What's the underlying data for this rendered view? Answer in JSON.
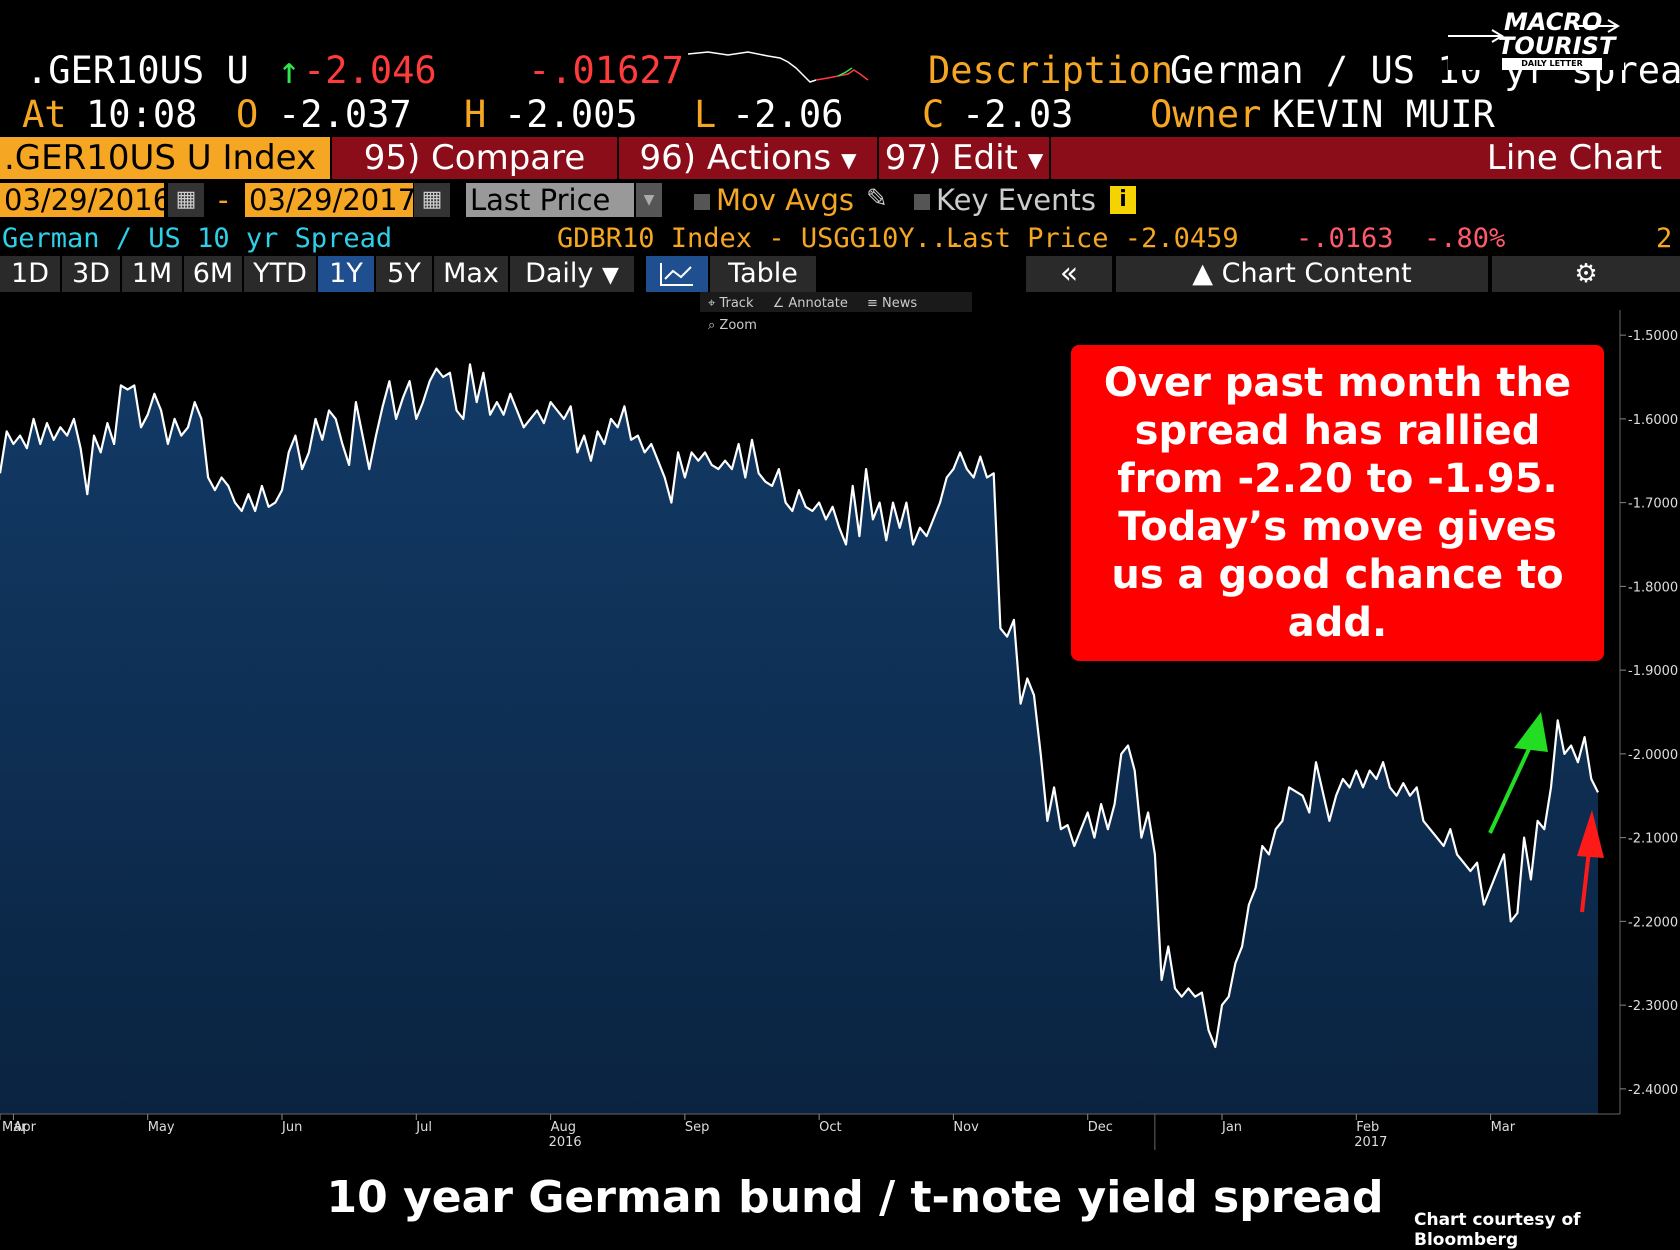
{
  "header": {
    "ticker": ".GER10US U",
    "last_arrow": "↑",
    "last": "-2.046",
    "change": "-.01627",
    "desc_label": "Description",
    "desc_value": "German / US 10 yr sprea",
    "at_label": "At",
    "time": "10:08",
    "open_label": "O",
    "open": "-2.037",
    "high_label": "H",
    "high": "-2.005",
    "low_label": "L",
    "low": "-2.06",
    "close_label": "C",
    "close": "-2.03",
    "owner_label": "Owner",
    "owner": "KEVIN MUIR"
  },
  "logo": {
    "line1": "MACRO",
    "line2": "TOURIST",
    "line3": "DAILY LETTER"
  },
  "toolbar": {
    "security": ".GER10US U Index",
    "compare": "95) Compare",
    "actions": "96) Actions",
    "edit": "97) Edit",
    "chart_type": "Line Chart"
  },
  "settings": {
    "start_date": "03/29/2016",
    "dash": "-",
    "end_date": "03/29/2017",
    "field": "Last Price",
    "mov_avgs": "Mov Avgs",
    "key_events": "Key Events"
  },
  "legend": {
    "name": "German / US 10 yr Spread",
    "series": "GDBR10 Index - USGG10Y...",
    "last_price": "Last Price -2.0459",
    "change": "-.0163",
    "pct": "-.80%",
    "count": "2"
  },
  "periods": [
    "1D",
    "3D",
    "1M",
    "6M",
    "YTD",
    "1Y",
    "5Y",
    "Max"
  ],
  "active_period": "1Y",
  "frequency": "Daily",
  "table_label": "Table",
  "chart_content_label": "Chart Content",
  "chart_tools": [
    "Track",
    "Annotate",
    "News",
    "Zoom"
  ],
  "callout": "Over past month the spread has rallied from -2.20 to -1.95.  Today’s move gives us a good chance to add.",
  "caption": "10 year German bund / t-note yield spread",
  "credit": "Chart courtesy of Bloomberg",
  "colors": {
    "accent_orange": "#f5a623",
    "bar_red": "#8b0d1a",
    "area_fill": "#0d2a4d",
    "callout_red": "#ff0000"
  },
  "chart_data": {
    "type": "area",
    "ylim": [
      -2.43,
      -1.47
    ],
    "yticks": [
      -1.5,
      -1.6,
      -1.7,
      -1.8,
      -1.9,
      -2.0,
      -2.1,
      -2.2,
      -2.3,
      -2.4
    ],
    "ytick_labels": [
      "-1.5000",
      "-1.6000",
      "-1.7000",
      "-1.8000",
      "-1.9000",
      "-2.0000",
      "-2.1000",
      "-2.2000",
      "-2.3000",
      "-2.4000"
    ],
    "x_months": [
      {
        "label": "Mar",
        "year": "",
        "m": 0.0
      },
      {
        "label": "Apr",
        "year": "",
        "m": 0.1
      },
      {
        "label": "May",
        "year": "",
        "m": 1.1
      },
      {
        "label": "Jun",
        "year": "",
        "m": 2.1
      },
      {
        "label": "Jul",
        "year": "",
        "m": 3.1
      },
      {
        "label": "Aug",
        "year": "2016",
        "m": 4.1
      },
      {
        "label": "Sep",
        "year": "",
        "m": 5.1
      },
      {
        "label": "Oct",
        "year": "",
        "m": 6.1
      },
      {
        "label": "Nov",
        "year": "",
        "m": 7.1
      },
      {
        "label": "Dec",
        "year": "",
        "m": 8.1
      },
      {
        "label": "Jan",
        "year": "",
        "m": 9.1
      },
      {
        "label": "Feb",
        "year": "2017",
        "m": 10.1
      },
      {
        "label": "Mar",
        "year": "",
        "m": 11.1
      }
    ],
    "series": [
      {
        "values": [
          [
            0.0,
            -1.665
          ],
          [
            0.05,
            -1.615
          ],
          [
            0.1,
            -1.63
          ],
          [
            0.15,
            -1.62
          ],
          [
            0.2,
            -1.635
          ],
          [
            0.25,
            -1.6
          ],
          [
            0.3,
            -1.63
          ],
          [
            0.35,
            -1.605
          ],
          [
            0.4,
            -1.625
          ],
          [
            0.45,
            -1.61
          ],
          [
            0.5,
            -1.62
          ],
          [
            0.55,
            -1.6
          ],
          [
            0.6,
            -1.635
          ],
          [
            0.65,
            -1.69
          ],
          [
            0.7,
            -1.62
          ],
          [
            0.75,
            -1.64
          ],
          [
            0.8,
            -1.605
          ],
          [
            0.85,
            -1.63
          ],
          [
            0.9,
            -1.56
          ],
          [
            0.95,
            -1.565
          ],
          [
            1.0,
            -1.56
          ],
          [
            1.05,
            -1.61
          ],
          [
            1.1,
            -1.595
          ],
          [
            1.15,
            -1.57
          ],
          [
            1.2,
            -1.59
          ],
          [
            1.25,
            -1.63
          ],
          [
            1.3,
            -1.6
          ],
          [
            1.35,
            -1.62
          ],
          [
            1.4,
            -1.61
          ],
          [
            1.45,
            -1.58
          ],
          [
            1.5,
            -1.6
          ],
          [
            1.55,
            -1.67
          ],
          [
            1.6,
            -1.685
          ],
          [
            1.65,
            -1.67
          ],
          [
            1.7,
            -1.68
          ],
          [
            1.75,
            -1.7
          ],
          [
            1.8,
            -1.71
          ],
          [
            1.85,
            -1.69
          ],
          [
            1.9,
            -1.71
          ],
          [
            1.95,
            -1.68
          ],
          [
            2.0,
            -1.705
          ],
          [
            2.05,
            -1.7
          ],
          [
            2.1,
            -1.685
          ],
          [
            2.15,
            -1.64
          ],
          [
            2.2,
            -1.62
          ],
          [
            2.25,
            -1.66
          ],
          [
            2.3,
            -1.64
          ],
          [
            2.35,
            -1.6
          ],
          [
            2.4,
            -1.625
          ],
          [
            2.45,
            -1.59
          ],
          [
            2.5,
            -1.6
          ],
          [
            2.55,
            -1.63
          ],
          [
            2.6,
            -1.655
          ],
          [
            2.65,
            -1.58
          ],
          [
            2.7,
            -1.62
          ],
          [
            2.75,
            -1.66
          ],
          [
            2.8,
            -1.62
          ],
          [
            2.85,
            -1.585
          ],
          [
            2.9,
            -1.555
          ],
          [
            2.95,
            -1.6
          ],
          [
            3.0,
            -1.575
          ],
          [
            3.05,
            -1.555
          ],
          [
            3.1,
            -1.6
          ],
          [
            3.15,
            -1.58
          ],
          [
            3.2,
            -1.555
          ],
          [
            3.25,
            -1.54
          ],
          [
            3.3,
            -1.55
          ],
          [
            3.35,
            -1.545
          ],
          [
            3.4,
            -1.59
          ],
          [
            3.45,
            -1.6
          ],
          [
            3.5,
            -1.535
          ],
          [
            3.55,
            -1.58
          ],
          [
            3.6,
            -1.545
          ],
          [
            3.65,
            -1.595
          ],
          [
            3.7,
            -1.58
          ],
          [
            3.75,
            -1.595
          ],
          [
            3.8,
            -1.57
          ],
          [
            3.85,
            -1.59
          ],
          [
            3.9,
            -1.61
          ],
          [
            3.95,
            -1.6
          ],
          [
            4.0,
            -1.59
          ],
          [
            4.05,
            -1.605
          ],
          [
            4.1,
            -1.58
          ],
          [
            4.15,
            -1.59
          ],
          [
            4.2,
            -1.6
          ],
          [
            4.25,
            -1.585
          ],
          [
            4.3,
            -1.64
          ],
          [
            4.35,
            -1.62
          ],
          [
            4.4,
            -1.65
          ],
          [
            4.45,
            -1.615
          ],
          [
            4.5,
            -1.63
          ],
          [
            4.55,
            -1.6
          ],
          [
            4.6,
            -1.61
          ],
          [
            4.65,
            -1.585
          ],
          [
            4.7,
            -1.625
          ],
          [
            4.75,
            -1.62
          ],
          [
            4.8,
            -1.64
          ],
          [
            4.85,
            -1.63
          ],
          [
            4.9,
            -1.65
          ],
          [
            4.95,
            -1.67
          ],
          [
            5.0,
            -1.7
          ],
          [
            5.05,
            -1.64
          ],
          [
            5.1,
            -1.67
          ],
          [
            5.15,
            -1.64
          ],
          [
            5.2,
            -1.65
          ],
          [
            5.25,
            -1.64
          ],
          [
            5.3,
            -1.655
          ],
          [
            5.35,
            -1.66
          ],
          [
            5.4,
            -1.65
          ],
          [
            5.45,
            -1.66
          ],
          [
            5.5,
            -1.63
          ],
          [
            5.55,
            -1.67
          ],
          [
            5.6,
            -1.625
          ],
          [
            5.65,
            -1.665
          ],
          [
            5.7,
            -1.675
          ],
          [
            5.75,
            -1.68
          ],
          [
            5.8,
            -1.66
          ],
          [
            5.85,
            -1.7
          ],
          [
            5.9,
            -1.71
          ],
          [
            5.95,
            -1.685
          ],
          [
            6.0,
            -1.705
          ],
          [
            6.05,
            -1.71
          ],
          [
            6.1,
            -1.7
          ],
          [
            6.15,
            -1.72
          ],
          [
            6.2,
            -1.705
          ],
          [
            6.25,
            -1.73
          ],
          [
            6.3,
            -1.75
          ],
          [
            6.35,
            -1.68
          ],
          [
            6.4,
            -1.74
          ],
          [
            6.45,
            -1.66
          ],
          [
            6.5,
            -1.72
          ],
          [
            6.55,
            -1.7
          ],
          [
            6.6,
            -1.745
          ],
          [
            6.65,
            -1.7
          ],
          [
            6.7,
            -1.73
          ],
          [
            6.75,
            -1.7
          ],
          [
            6.8,
            -1.75
          ],
          [
            6.85,
            -1.73
          ],
          [
            6.9,
            -1.74
          ],
          [
            6.95,
            -1.72
          ],
          [
            7.0,
            -1.7
          ],
          [
            7.05,
            -1.67
          ],
          [
            7.1,
            -1.66
          ],
          [
            7.15,
            -1.64
          ],
          [
            7.2,
            -1.66
          ],
          [
            7.25,
            -1.67
          ],
          [
            7.3,
            -1.645
          ],
          [
            7.35,
            -1.67
          ],
          [
            7.4,
            -1.665
          ],
          [
            7.45,
            -1.85
          ],
          [
            7.5,
            -1.86
          ],
          [
            7.55,
            -1.84
          ],
          [
            7.6,
            -1.94
          ],
          [
            7.65,
            -1.91
          ],
          [
            7.7,
            -1.93
          ],
          [
            7.75,
            -2.0
          ],
          [
            7.8,
            -2.08
          ],
          [
            7.85,
            -2.04
          ],
          [
            7.9,
            -2.09
          ],
          [
            7.95,
            -2.085
          ],
          [
            8.0,
            -2.11
          ],
          [
            8.05,
            -2.09
          ],
          [
            8.1,
            -2.07
          ],
          [
            8.15,
            -2.1
          ],
          [
            8.2,
            -2.06
          ],
          [
            8.25,
            -2.09
          ],
          [
            8.3,
            -2.06
          ],
          [
            8.35,
            -2.0
          ],
          [
            8.4,
            -1.99
          ],
          [
            8.45,
            -2.02
          ],
          [
            8.5,
            -2.1
          ],
          [
            8.55,
            -2.07
          ],
          [
            8.6,
            -2.12
          ],
          [
            8.65,
            -2.27
          ],
          [
            8.7,
            -2.23
          ],
          [
            8.75,
            -2.28
          ],
          [
            8.8,
            -2.29
          ],
          [
            8.85,
            -2.28
          ],
          [
            8.9,
            -2.29
          ],
          [
            8.95,
            -2.285
          ],
          [
            9.0,
            -2.33
          ],
          [
            9.05,
            -2.35
          ],
          [
            9.1,
            -2.3
          ],
          [
            9.15,
            -2.29
          ],
          [
            9.2,
            -2.25
          ],
          [
            9.25,
            -2.23
          ],
          [
            9.3,
            -2.18
          ],
          [
            9.35,
            -2.16
          ],
          [
            9.4,
            -2.11
          ],
          [
            9.45,
            -2.12
          ],
          [
            9.5,
            -2.09
          ],
          [
            9.55,
            -2.08
          ],
          [
            9.6,
            -2.04
          ],
          [
            9.65,
            -2.045
          ],
          [
            9.7,
            -2.05
          ],
          [
            9.75,
            -2.07
          ],
          [
            9.8,
            -2.01
          ],
          [
            9.85,
            -2.045
          ],
          [
            9.9,
            -2.08
          ],
          [
            9.95,
            -2.05
          ],
          [
            10.0,
            -2.03
          ],
          [
            10.05,
            -2.04
          ],
          [
            10.1,
            -2.02
          ],
          [
            10.15,
            -2.04
          ],
          [
            10.2,
            -2.02
          ],
          [
            10.25,
            -2.03
          ],
          [
            10.3,
            -2.01
          ],
          [
            10.35,
            -2.04
          ],
          [
            10.4,
            -2.05
          ],
          [
            10.45,
            -2.035
          ],
          [
            10.5,
            -2.05
          ],
          [
            10.55,
            -2.04
          ],
          [
            10.6,
            -2.08
          ],
          [
            10.65,
            -2.09
          ],
          [
            10.7,
            -2.1
          ],
          [
            10.75,
            -2.11
          ],
          [
            10.8,
            -2.09
          ],
          [
            10.85,
            -2.12
          ],
          [
            10.9,
            -2.13
          ],
          [
            10.95,
            -2.14
          ],
          [
            11.0,
            -2.13
          ],
          [
            11.05,
            -2.18
          ],
          [
            11.1,
            -2.16
          ],
          [
            11.15,
            -2.14
          ],
          [
            11.2,
            -2.12
          ],
          [
            11.25,
            -2.2
          ],
          [
            11.3,
            -2.19
          ],
          [
            11.35,
            -2.1
          ],
          [
            11.4,
            -2.15
          ],
          [
            11.45,
            -2.08
          ],
          [
            11.5,
            -2.09
          ],
          [
            11.55,
            -2.04
          ],
          [
            11.6,
            -1.96
          ],
          [
            11.65,
            -2.0
          ],
          [
            11.7,
            -1.99
          ],
          [
            11.75,
            -2.01
          ],
          [
            11.8,
            -1.98
          ],
          [
            11.85,
            -2.03
          ],
          [
            11.9,
            -2.046
          ]
        ]
      }
    ]
  }
}
